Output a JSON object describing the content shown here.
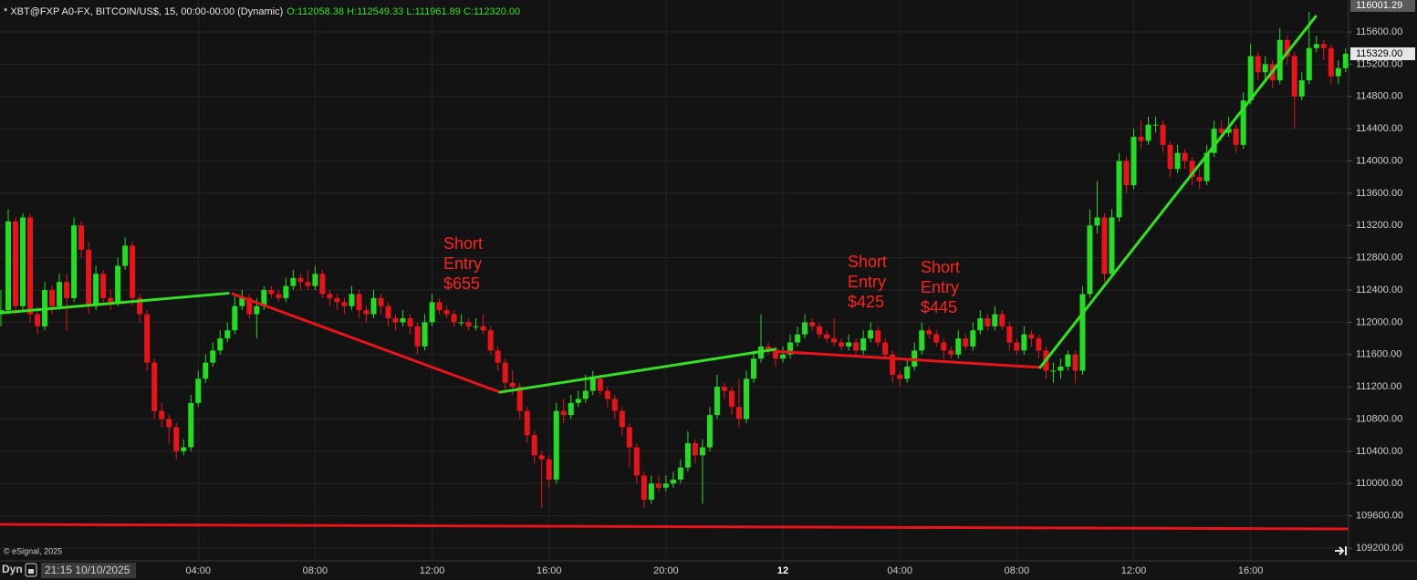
{
  "chart_data": {
    "type": "candlestick",
    "title": "* XBT@FXP A0-FX, BITCOIN/US$, 15, 00:00-00:00 (Dynamic)",
    "subtitle": "O:112058.38 H:112549.33 L:111961.89 C:112320.00",
    "up_color": "#22dd22",
    "down_color": "#e8141a",
    "grid": true,
    "open": [
      112100,
      112150,
      113250,
      112200,
      113300,
      112100,
      111950,
      112400,
      112200,
      112500,
      112300,
      113200,
      112900,
      112200,
      112600,
      112300,
      112250,
      112700,
      112950,
      112300,
      112100,
      111500,
      110900,
      110800,
      110700,
      110400,
      110450,
      111000,
      111300,
      111500,
      111650,
      111800,
      111900,
      112200,
      112300,
      112100,
      112200,
      112400,
      112350,
      112300,
      112450,
      112550,
      112500,
      112450,
      112600,
      112350,
      112300,
      112250,
      112200,
      112350,
      112150,
      112100,
      112300,
      112200,
      112050,
      112000,
      112050,
      111950,
      111700,
      112000,
      112250,
      112150,
      112100,
      112000,
      112000,
      111950,
      111950,
      111900,
      111650,
      111500,
      111250,
      111200,
      110900,
      110600,
      110350,
      110300,
      110050,
      110900,
      110850,
      111000,
      111050,
      111150,
      111300,
      111150,
      111050,
      110900,
      110700,
      110450,
      110100,
      109800,
      110000,
      109950,
      110000,
      110050,
      110200,
      110500,
      110350,
      110450,
      110850,
      111200,
      111150,
      110950,
      110800,
      111300,
      111550,
      111700,
      111650,
      111550,
      111600,
      111750,
      111850,
      112000,
      111950,
      111850,
      111800,
      111750,
      111700,
      111750,
      111650,
      111800,
      111900,
      111750,
      111600,
      111350,
      111300,
      111450,
      111650,
      111900,
      111850,
      111750,
      111650,
      111600,
      111800,
      111700,
      111900,
      112050,
      111950,
      112100,
      111950,
      111750,
      111650,
      111850,
      111800,
      111650,
      111400,
      111400,
      111450,
      111600,
      111400,
      112350,
      113200,
      113300,
      112600,
      113300,
      114000,
      113700,
      114300,
      114250,
      114450,
      114450,
      114200,
      113900,
      114100,
      114000,
      113800,
      113750,
      114100,
      114400,
      114350,
      114400,
      114200,
      114750,
      115300,
      115100,
      115200,
      115000,
      115500,
      115300,
      114800,
      115000,
      115400,
      115450,
      115400,
      115050,
      115150
    ],
    "high": [
      112400,
      113400,
      113300,
      113350,
      113350,
      112200,
      112500,
      112450,
      112600,
      112600,
      113300,
      113250,
      113000,
      112700,
      112650,
      112400,
      112800,
      113050,
      113000,
      112350,
      112150,
      111550,
      111000,
      110850,
      110750,
      110550,
      111100,
      111400,
      111600,
      111750,
      111900,
      112000,
      112350,
      112400,
      112350,
      112300,
      112450,
      112450,
      112400,
      112550,
      112650,
      112600,
      112650,
      112700,
      112650,
      112400,
      112350,
      112300,
      112450,
      112400,
      112200,
      112400,
      112350,
      112250,
      112100,
      112150,
      112100,
      112000,
      112100,
      112350,
      112300,
      112200,
      112150,
      112100,
      112050,
      112050,
      112100,
      111950,
      111700,
      111550,
      111400,
      111250,
      110950,
      110650,
      110400,
      110350,
      111000,
      111050,
      111100,
      111150,
      111350,
      111400,
      111350,
      111200,
      111100,
      110950,
      110750,
      110500,
      110150,
      110100,
      110100,
      110100,
      110150,
      110300,
      110650,
      110550,
      110550,
      110950,
      111350,
      111250,
      111200,
      111300,
      111400,
      111650,
      112100,
      111750,
      111700,
      111700,
      111850,
      111950,
      112100,
      112050,
      112000,
      111900,
      112050,
      111800,
      111850,
      111800,
      111900,
      112000,
      111950,
      111800,
      111650,
      111400,
      111550,
      111750,
      112000,
      111950,
      111900,
      111800,
      111700,
      111900,
      111850,
      112000,
      112150,
      112100,
      112200,
      112150,
      112000,
      111800,
      111950,
      111900,
      111850,
      111700,
      111500,
      111550,
      111650,
      111650,
      112450,
      113400,
      113750,
      113350,
      113400,
      114100,
      114050,
      114400,
      114500,
      114550,
      114550,
      114500,
      114250,
      114200,
      114150,
      114050,
      113900,
      114200,
      114500,
      114500,
      114550,
      114450,
      114850,
      115450,
      115350,
      115300,
      115250,
      115650,
      115550,
      115350,
      115100,
      115850,
      115550,
      115500,
      115450,
      115250,
      115400
    ],
    "low": [
      111950,
      112100,
      112100,
      112150,
      112000,
      111850,
      111900,
      112100,
      112150,
      111900,
      112250,
      112800,
      112100,
      112150,
      112200,
      112150,
      112200,
      112650,
      112200,
      112000,
      111400,
      110800,
      110700,
      110500,
      110300,
      110350,
      110400,
      110950,
      111250,
      111450,
      111600,
      111750,
      111850,
      112150,
      112050,
      111800,
      112150,
      112300,
      112250,
      112250,
      112400,
      112400,
      112400,
      112400,
      112300,
      112200,
      112150,
      112100,
      112150,
      112050,
      112000,
      112050,
      112100,
      111950,
      111900,
      111950,
      111850,
      111600,
      111650,
      111950,
      112100,
      112050,
      111950,
      111950,
      111900,
      111900,
      111850,
      111600,
      111400,
      111150,
      111100,
      110800,
      110500,
      110250,
      109700,
      109950,
      110000,
      110750,
      110800,
      110950,
      111000,
      111100,
      111100,
      110950,
      110800,
      110600,
      110200,
      110000,
      109700,
      109750,
      109900,
      109900,
      109950,
      110000,
      110150,
      110250,
      109750,
      110400,
      110800,
      111050,
      110850,
      110700,
      110750,
      111250,
      111500,
      111600,
      111450,
      111500,
      111550,
      111700,
      111800,
      111900,
      111800,
      111750,
      111700,
      111650,
      111650,
      111600,
      111600,
      111750,
      111700,
      111550,
      111250,
      111200,
      111250,
      111400,
      111600,
      111800,
      111700,
      111550,
      111550,
      111550,
      111650,
      111650,
      111850,
      111900,
      111900,
      111900,
      111650,
      111600,
      111600,
      111700,
      111550,
      111300,
      111250,
      111300,
      111400,
      111250,
      111350,
      112300,
      113100,
      112500,
      112550,
      113250,
      113600,
      113650,
      114150,
      114200,
      114350,
      114100,
      113800,
      113850,
      113900,
      113700,
      113650,
      113700,
      114050,
      114250,
      114300,
      114100,
      114150,
      114700,
      115000,
      115000,
      114900,
      114950,
      115200,
      114400,
      114750,
      114950,
      115350,
      115250,
      114950,
      114950,
      115100
    ],
    "close": [
      112150,
      113250,
      112200,
      113300,
      112100,
      111950,
      112400,
      112200,
      112500,
      112300,
      113200,
      112900,
      112200,
      112600,
      112300,
      112250,
      112700,
      112950,
      112300,
      112100,
      111500,
      110900,
      110800,
      110700,
      110400,
      110450,
      111000,
      111300,
      111500,
      111650,
      111800,
      111900,
      112200,
      112300,
      112100,
      112200,
      112400,
      112350,
      112300,
      112450,
      112550,
      112500,
      112450,
      112600,
      112350,
      112300,
      112250,
      112200,
      112350,
      112150,
      112100,
      112300,
      112200,
      112050,
      112000,
      112050,
      111950,
      111700,
      112000,
      112250,
      112150,
      112100,
      112000,
      112000,
      111950,
      111950,
      111900,
      111650,
      111500,
      111250,
      111200,
      110900,
      110600,
      110350,
      110300,
      110050,
      110900,
      110850,
      111000,
      111050,
      111150,
      111300,
      111150,
      111050,
      110900,
      110700,
      110450,
      110100,
      109800,
      110000,
      109950,
      110000,
      110050,
      110200,
      110500,
      110350,
      110450,
      110850,
      111200,
      111150,
      110950,
      110800,
      111300,
      111550,
      111700,
      111650,
      111550,
      111600,
      111750,
      111850,
      112000,
      111950,
      111850,
      111800,
      111750,
      111700,
      111750,
      111650,
      111800,
      111900,
      111750,
      111600,
      111350,
      111300,
      111450,
      111650,
      111900,
      111850,
      111750,
      111650,
      111600,
      111800,
      111700,
      111900,
      112050,
      111950,
      112100,
      111950,
      111750,
      111650,
      111850,
      111800,
      111650,
      111400,
      111400,
      111450,
      111600,
      111400,
      112350,
      113200,
      113300,
      112600,
      113300,
      114000,
      113700,
      114300,
      114250,
      114450,
      114450,
      114200,
      113900,
      114100,
      114000,
      113800,
      113750,
      114100,
      114400,
      114350,
      114400,
      114200,
      114750,
      115300,
      115100,
      115200,
      115000,
      115500,
      115300,
      114800,
      115000,
      115400,
      115450,
      115400,
      115050,
      115150,
      115329
    ],
    "xlim": [
      -0.125,
      184.4
    ],
    "xticks": [
      {
        "value": 27,
        "label": "04:00"
      },
      {
        "value": 43,
        "label": "08:00"
      },
      {
        "value": 59,
        "label": "12:00"
      },
      {
        "value": 75,
        "label": "16:00"
      },
      {
        "value": 91,
        "label": "20:00"
      },
      {
        "value": 107,
        "label": "12"
      },
      {
        "value": 123,
        "label": "04:00"
      },
      {
        "value": 139,
        "label": "08:00"
      },
      {
        "value": 155,
        "label": "12:00"
      },
      {
        "value": 171,
        "label": "16:00"
      }
    ],
    "ylim": [
      109076,
      115996
    ],
    "yticks": [
      {
        "value": 115600,
        "label": "115600.00"
      },
      {
        "value": 115200,
        "label": "115200.00"
      },
      {
        "value": 114800,
        "label": "114800.00"
      },
      {
        "value": 114400,
        "label": "114400.00"
      },
      {
        "value": 114000,
        "label": "114000.00"
      },
      {
        "value": 113600,
        "label": "113600.00"
      },
      {
        "value": 113200,
        "label": "113200.00"
      },
      {
        "value": 112800,
        "label": "112800.00"
      },
      {
        "value": 112400,
        "label": "112400.00"
      },
      {
        "value": 112000,
        "label": "112000.00"
      },
      {
        "value": 111600,
        "label": "111600.00"
      },
      {
        "value": 111200,
        "label": "111200.00"
      },
      {
        "value": 110800,
        "label": "110800.00"
      },
      {
        "value": 110400,
        "label": "110400.00"
      },
      {
        "value": 110000,
        "label": "110000.00"
      },
      {
        "value": 109600,
        "label": "109600.00"
      },
      {
        "value": 109200,
        "label": "109200.00"
      }
    ],
    "price_tags": [
      {
        "value": 116001.29,
        "label": "116001.29"
      },
      {
        "value": 115329,
        "label": "115329.00"
      }
    ],
    "trendlines": [
      {
        "color": "#33e023",
        "points": [
          [
            0,
            112116
          ],
          [
            31.1,
            112360
          ]
        ]
      },
      {
        "color": "#e8141a",
        "points": [
          [
            31.7,
            112354
          ],
          [
            68.3,
            111133
          ]
        ]
      },
      {
        "color": "#33e023",
        "points": [
          [
            68.3,
            111133
          ],
          [
            106,
            111665
          ]
        ]
      },
      {
        "color": "#e8141a",
        "points": [
          [
            106,
            111640
          ],
          [
            142.2,
            111440
          ]
        ]
      },
      {
        "color": "#33e023",
        "points": [
          [
            142.2,
            111440
          ],
          [
            179.9,
            115792
          ]
        ]
      },
      {
        "color": "#e8141a",
        "points": [
          [
            0,
            109494
          ],
          [
            184.4,
            109438
          ]
        ]
      }
    ],
    "annotations": [
      {
        "lines": [
          "Short",
          "Entry",
          "$655"
        ]
      },
      {
        "lines": [
          "Short",
          "Entry",
          "$425"
        ]
      },
      {
        "lines": [
          "Short",
          "Entry",
          "$445"
        ]
      }
    ],
    "annotation_color": "#ff2222",
    "footer": {
      "mode": "Dyn",
      "time": "21:15 10/10/2025",
      "credit": "© eSignal, 2025"
    }
  }
}
